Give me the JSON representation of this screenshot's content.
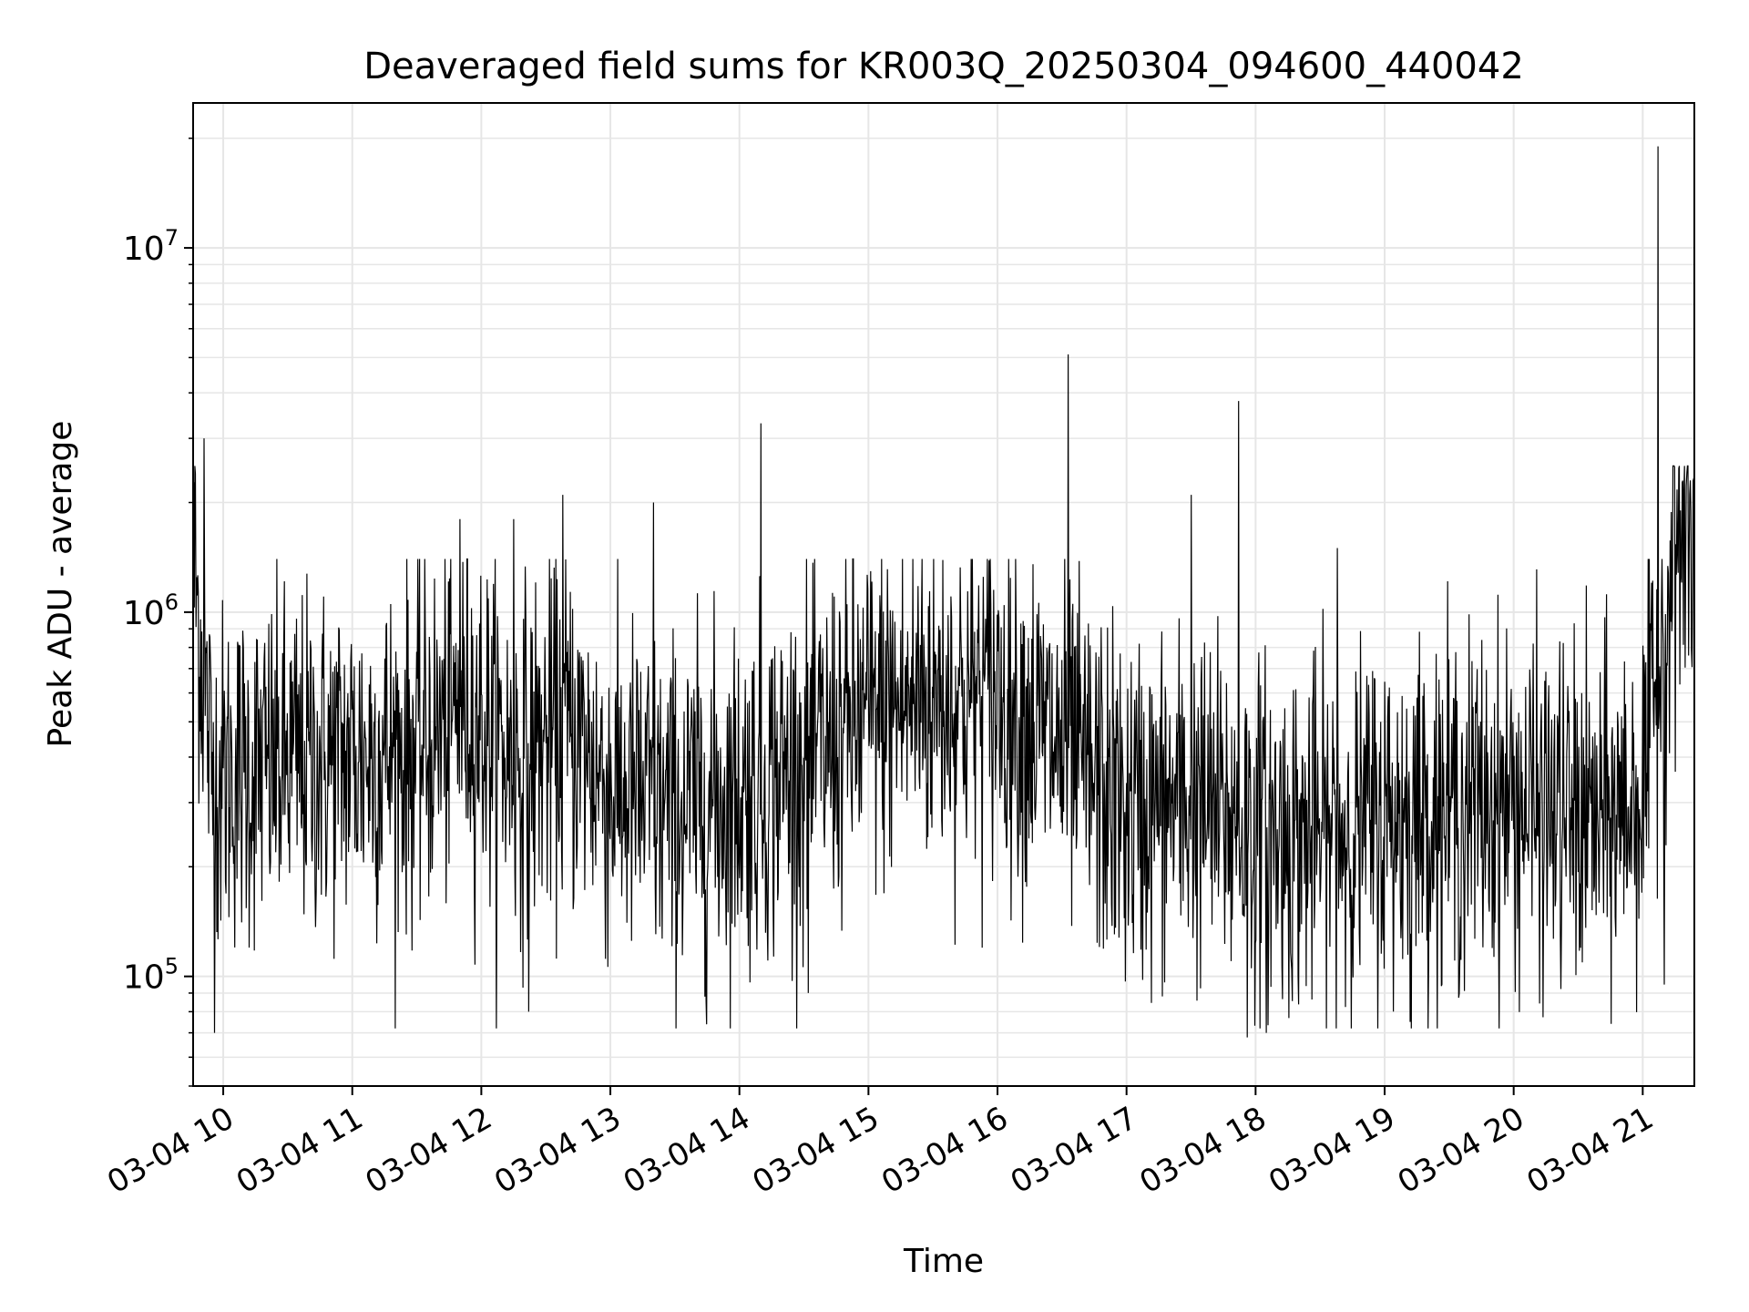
{
  "chart_data": {
    "type": "line",
    "title": "Deaveraged field sums for KR003Q_20250304_094600_440042",
    "xlabel": "Time",
    "ylabel": "Peak ADU - average",
    "yscale": "log",
    "ylim": [
      50000,
      25000000
    ],
    "xlim": [
      "2025-03-04 09:46",
      "2025-03-04 21:24"
    ],
    "grid": "on",
    "line_color": "#000000",
    "grid_color": "#e6e6e6",
    "x_ticks": [
      {
        "t": "2025-03-04 10:00",
        "label": "03-04 10"
      },
      {
        "t": "2025-03-04 11:00",
        "label": "03-04 11"
      },
      {
        "t": "2025-03-04 12:00",
        "label": "03-04 12"
      },
      {
        "t": "2025-03-04 13:00",
        "label": "03-04 13"
      },
      {
        "t": "2025-03-04 14:00",
        "label": "03-04 14"
      },
      {
        "t": "2025-03-04 15:00",
        "label": "03-04 15"
      },
      {
        "t": "2025-03-04 16:00",
        "label": "03-04 16"
      },
      {
        "t": "2025-03-04 17:00",
        "label": "03-04 17"
      },
      {
        "t": "2025-03-04 18:00",
        "label": "03-04 18"
      },
      {
        "t": "2025-03-04 19:00",
        "label": "03-04 19"
      },
      {
        "t": "2025-03-04 20:00",
        "label": "03-04 20"
      },
      {
        "t": "2025-03-04 21:00",
        "label": "03-04 21"
      }
    ],
    "y_ticks": [
      {
        "value": 100000,
        "base": "10",
        "exp": "5"
      },
      {
        "value": 1000000,
        "base": "10",
        "exp": "6"
      },
      {
        "value": 10000000,
        "base": "10",
        "exp": "7"
      }
    ],
    "series": [
      {
        "baseline": [
          [
            "2025-03-04 09:46",
            1400000
          ],
          [
            "2025-03-04 09:55",
            350000
          ],
          [
            "2025-03-04 10:30",
            380000
          ],
          [
            "2025-03-04 11:00",
            400000
          ],
          [
            "2025-03-04 11:30",
            420000
          ],
          [
            "2025-03-04 11:55",
            550000
          ],
          [
            "2025-03-04 12:15",
            380000
          ],
          [
            "2025-03-04 12:40",
            480000
          ],
          [
            "2025-03-04 13:00",
            330000
          ],
          [
            "2025-03-04 13:30",
            280000
          ],
          [
            "2025-03-04 14:00",
            320000
          ],
          [
            "2025-03-04 14:30",
            380000
          ],
          [
            "2025-03-04 15:00",
            520000
          ],
          [
            "2025-03-04 15:30",
            580000
          ],
          [
            "2025-03-04 16:00",
            600000
          ],
          [
            "2025-03-04 16:30",
            420000
          ],
          [
            "2025-03-04 17:00",
            280000
          ],
          [
            "2025-03-04 17:30",
            300000
          ],
          [
            "2025-03-04 18:00",
            250000
          ],
          [
            "2025-03-04 18:30",
            240000
          ],
          [
            "2025-03-04 19:00",
            270000
          ],
          [
            "2025-03-04 19:30",
            290000
          ],
          [
            "2025-03-04 20:00",
            300000
          ],
          [
            "2025-03-04 20:40",
            260000
          ],
          [
            "2025-03-04 21:00",
            320000
          ],
          [
            "2025-03-04 21:15",
            1500000
          ],
          [
            "2025-03-04 21:24",
            1500000
          ]
        ],
        "spikes": [
          [
            "2025-03-04 09:47",
            2400000
          ],
          [
            "2025-03-04 09:51",
            3000000
          ],
          [
            "2025-03-04 09:56",
            70000
          ],
          [
            "2025-03-04 11:50",
            1800000
          ],
          [
            "2025-03-04 12:15",
            1800000
          ],
          [
            "2025-03-04 12:22",
            80000
          ],
          [
            "2025-03-04 12:38",
            2100000
          ],
          [
            "2025-03-04 13:20",
            2000000
          ],
          [
            "2025-03-04 14:10",
            3300000
          ],
          [
            "2025-03-04 14:32",
            90000
          ],
          [
            "2025-03-04 15:25",
            1400000
          ],
          [
            "2025-03-04 16:33",
            5100000
          ],
          [
            "2025-03-04 17:30",
            2100000
          ],
          [
            "2025-03-04 17:52",
            3800000
          ],
          [
            "2025-03-04 17:56",
            68000
          ],
          [
            "2025-03-04 18:05",
            70000
          ],
          [
            "2025-03-04 18:38",
            1500000
          ],
          [
            "2025-03-04 19:12",
            75000
          ],
          [
            "2025-03-04 21:07",
            19000000
          ],
          [
            "2025-03-04 21:10",
            95000
          ],
          [
            "2025-03-04 21:15",
            2500000
          ],
          [
            "2025-03-04 21:22",
            2300000
          ]
        ]
      }
    ]
  }
}
